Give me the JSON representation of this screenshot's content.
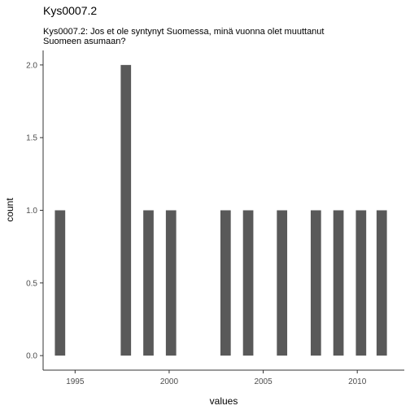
{
  "chart_data": {
    "type": "bar",
    "title": "Kys0007.2",
    "subtitle": [
      "Kys0007.2: Jos et ole syntynyt Suomessa, minä vuonna olet muuttanut",
      "Suomeen asumaan?"
    ],
    "xlabel": "values",
    "ylabel": "count",
    "x": [
      1994.2,
      1997.7,
      1998.9,
      2000.1,
      2003.0,
      2004.2,
      2006.0,
      2007.8,
      2009.0,
      2010.2,
      2011.3
    ],
    "values": [
      1,
      2,
      1,
      1,
      1,
      1,
      1,
      1,
      1,
      1,
      1
    ],
    "bar_width_years": 0.55,
    "xlim": [
      1993.3,
      2012.5
    ],
    "ylim": [
      -0.1,
      2.1
    ],
    "xticks": [
      1995,
      2000,
      2005,
      2010
    ],
    "xtick_labels": [
      "1995",
      "2000",
      "2005",
      "2010"
    ],
    "yticks": [
      0,
      0.5,
      1,
      1.5,
      2
    ],
    "ytick_labels": [
      "0.0",
      "0.5",
      "1.0",
      "1.5",
      "2.0"
    ],
    "grid": false,
    "bar_color": "#595959",
    "axis_color": "#333333"
  }
}
